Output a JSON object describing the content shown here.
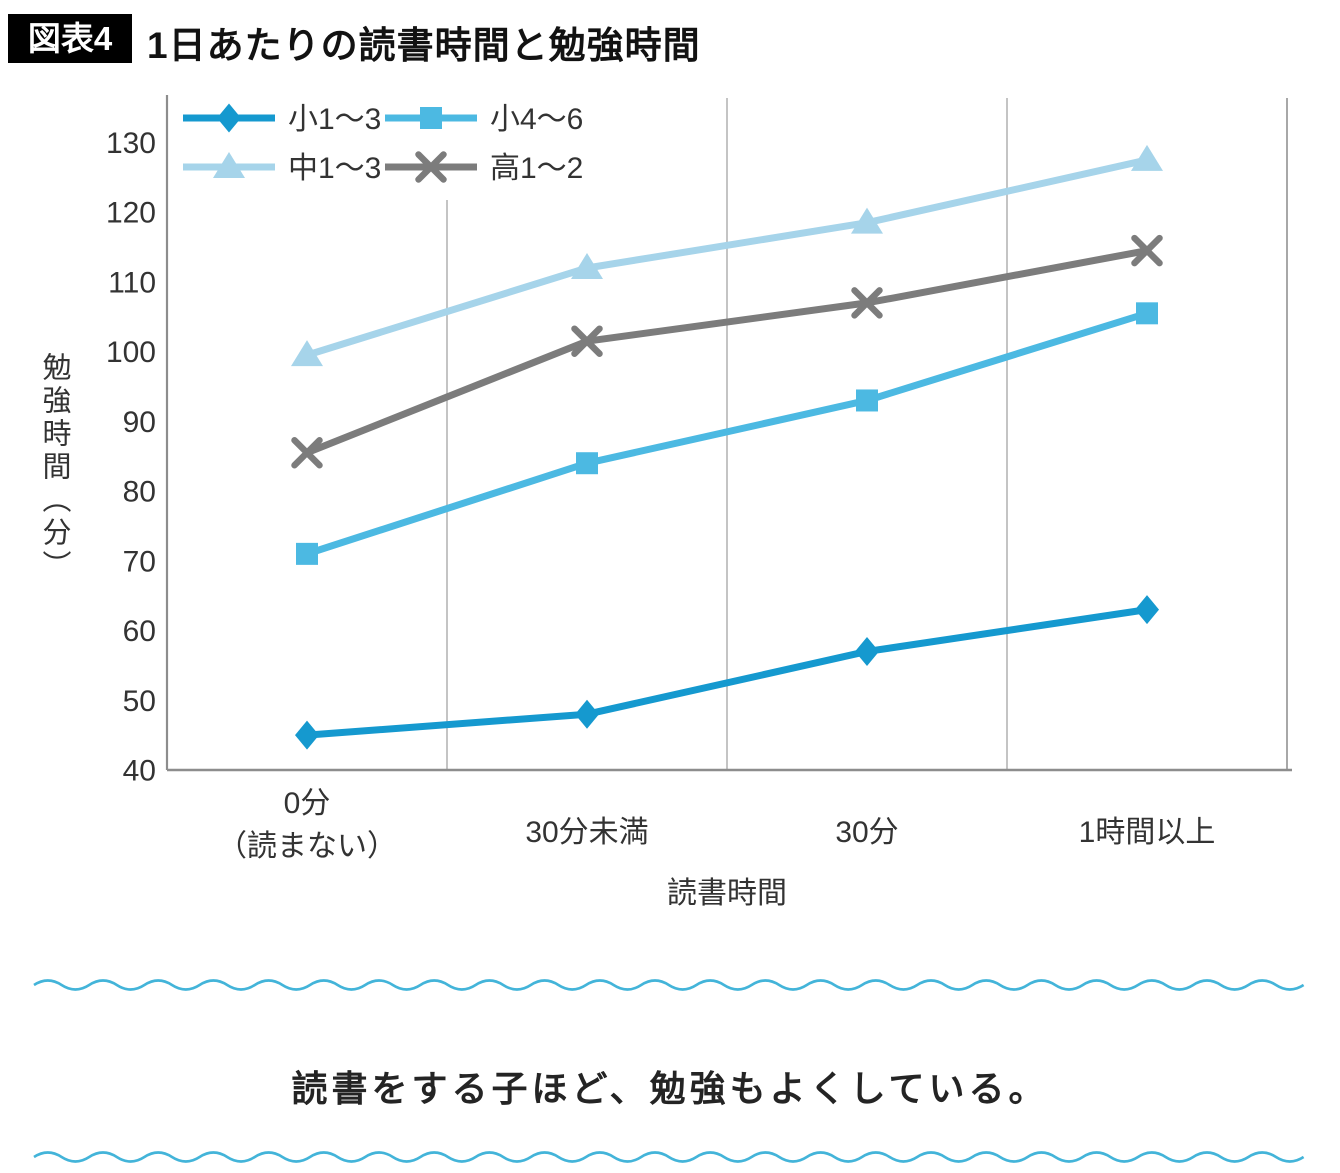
{
  "figure": {
    "badge": "図表4",
    "title": "1日あたりの読書時間と勉強時間"
  },
  "chart_data": {
    "type": "line",
    "title": "1日あたりの読書時間と勉強時間",
    "categories": [
      [
        "0分",
        "（読まない）"
      ],
      [
        "30分未満"
      ],
      [
        "30分"
      ],
      [
        "1時間以上"
      ]
    ],
    "xlabel": "読書時間",
    "ylabel": "勉強時間（分）",
    "ylim": [
      40,
      130
    ],
    "yticks": [
      40,
      50,
      60,
      70,
      80,
      90,
      100,
      110,
      120,
      130
    ],
    "grid": "vertical-only",
    "legend_position": "top-left",
    "series": [
      {
        "name": "小1～3",
        "marker": "diamond",
        "color": "#1599cf",
        "values": [
          45,
          48,
          57,
          63
        ]
      },
      {
        "name": "小4～6",
        "marker": "square",
        "color": "#4cb9e2",
        "values": [
          71,
          84,
          93,
          105.5
        ]
      },
      {
        "name": "中1～3",
        "marker": "triangle",
        "color": "#a6d4ea",
        "values": [
          99.5,
          112,
          118.5,
          127.5
        ]
      },
      {
        "name": "高1～2",
        "marker": "x",
        "color": "#7c7c7c",
        "values": [
          85.5,
          101.5,
          107,
          114.5
        ]
      }
    ]
  },
  "caption": {
    "text": "読書をする子ほど、勉強もよくしている。"
  },
  "colors": {
    "wave": "#43b4d9",
    "axis": "#8d8d8d",
    "gridline": "#b5b5b5",
    "plot_right_border": "#a8a8a8",
    "tick_text": "#333333",
    "badge_bg": "#000000",
    "badge_text": "#ffffff"
  }
}
